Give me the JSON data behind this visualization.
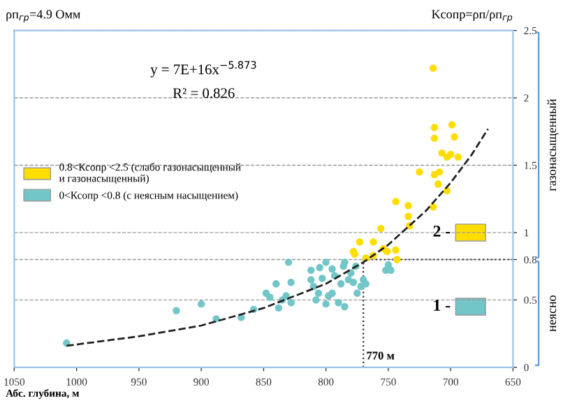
{
  "chart_data": {
    "type": "scatter",
    "title": "ρп$_{гр}$=4.9 Омм",
    "subtitle": "Kсопр=ρп/ρп$_{гр}$",
    "xlabel": "Абс. глубина, м",
    "xlim": [
      1050,
      650
    ],
    "xticks": [
      1050,
      1000,
      950,
      900,
      850,
      800,
      750,
      700,
      650
    ],
    "ylim": [
      0,
      2.5
    ],
    "yticks": [
      0,
      0.5,
      0.8,
      1,
      1.5,
      2,
      2.5
    ],
    "grid": "y",
    "legend": "left",
    "marker": "circle",
    "series": [
      {
        "name": "0.8<Ксопр <2.5 (слабо газонасыщенный\nи газонасыщенный)",
        "color": "#ffdd00",
        "x": [
          714,
          713,
          699,
          713,
          697,
          707,
          700,
          703,
          694,
          725,
          713,
          709,
          710,
          703,
          714,
          734,
          744,
          734,
          733,
          756,
          773,
          762,
          778,
          777,
          768,
          762,
          754,
          751,
          744,
          743
        ],
        "values": [
          2.22,
          1.78,
          1.8,
          1.7,
          1.71,
          1.59,
          1.58,
          1.56,
          1.56,
          1.45,
          1.43,
          1.45,
          1.36,
          1.31,
          1.19,
          1.2,
          1.23,
          1.12,
          1.05,
          1.03,
          0.93,
          0.93,
          0.86,
          0.84,
          0.81,
          0.83,
          0.88,
          0.86,
          0.87,
          0.8
        ]
      },
      {
        "name": "0<Ксопр <0.8 (с неясным насыщением)",
        "color": "#72c6c8",
        "x": [
          1008,
          920,
          900,
          888,
          868,
          858,
          848,
          845,
          840,
          838,
          835,
          832,
          828,
          828,
          812,
          810,
          808,
          806,
          803,
          800,
          798,
          795,
          793,
          790,
          788,
          786,
          785,
          782,
          780,
          778,
          776,
          775,
          772,
          770,
          768,
          752,
          748,
          750,
          830,
          812,
          805,
          795,
          800,
          785
        ],
        "values": [
          0.18,
          0.42,
          0.47,
          0.36,
          0.37,
          0.43,
          0.55,
          0.52,
          0.62,
          0.44,
          0.5,
          0.53,
          0.48,
          0.63,
          0.65,
          0.6,
          0.5,
          0.55,
          0.66,
          0.47,
          0.53,
          0.55,
          0.68,
          0.48,
          0.62,
          0.75,
          0.45,
          0.65,
          0.7,
          0.63,
          0.75,
          0.55,
          0.6,
          0.65,
          0.62,
          0.72,
          0.72,
          0.76,
          0.78,
          0.72,
          0.74,
          0.73,
          0.78,
          0.78
        ]
      },
      {
        "type": "line",
        "color": "#222222",
        "line_style": "dashed",
        "marker": "none",
        "x": [
          1008,
          950,
          900,
          850,
          800,
          770,
          750,
          720,
          700,
          683,
          670
        ],
        "values": [
          0.16,
          0.23,
          0.31,
          0.44,
          0.62,
          0.78,
          0.91,
          1.16,
          1.37,
          1.58,
          1.77
        ]
      }
    ],
    "ref_lines": [
      {
        "axis": "x",
        "value": 770,
        "label": "770 м",
        "line_style": "dotted"
      },
      {
        "axis": "y",
        "value": 0.8,
        "line_style": "dotted"
      }
    ],
    "annotations": [
      "y = 7E+16x$^{−5.873}$",
      "R² = 0.826",
      "2 -",
      "1 -",
      "газонасыщенный",
      "неясно"
    ]
  }
}
